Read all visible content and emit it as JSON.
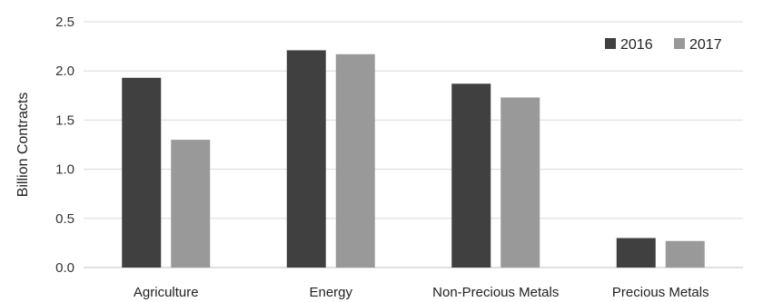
{
  "chart_data": {
    "type": "bar",
    "title": "",
    "xlabel": "",
    "ylabel": "Billion Contracts",
    "ylim": [
      0,
      2.5
    ],
    "yticks": [
      "0.0",
      "0.5",
      "1.0",
      "1.5",
      "2.0",
      "2.5"
    ],
    "ytick_values": [
      0,
      0.5,
      1.0,
      1.5,
      2.0,
      2.5
    ],
    "grid": true,
    "legend_position": "top-right",
    "categories": [
      "Agriculture",
      "Energy",
      "Non-Precious Metals",
      "Precious Metals"
    ],
    "series": [
      {
        "name": "2016",
        "color": "#404040",
        "values": [
          1.93,
          2.21,
          1.87,
          0.3
        ]
      },
      {
        "name": "2017",
        "color": "#999999",
        "values": [
          1.3,
          2.17,
          1.73,
          0.27
        ]
      }
    ]
  }
}
